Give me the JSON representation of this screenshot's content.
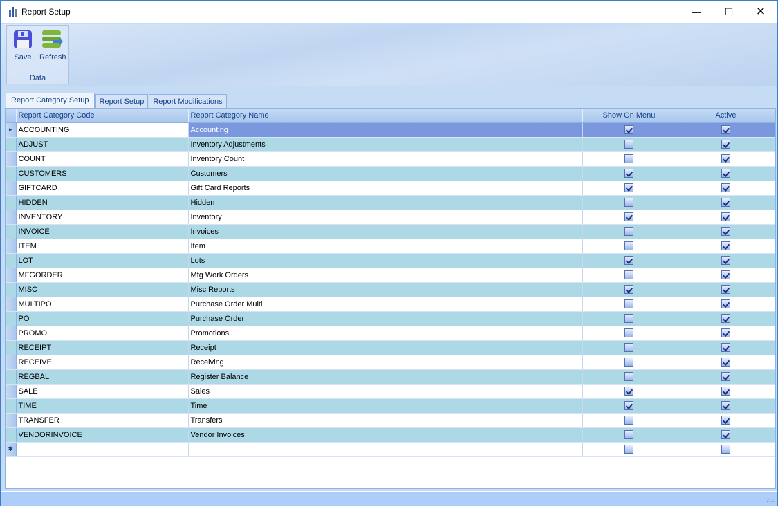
{
  "window": {
    "title": "Report Setup",
    "app_icon": "bar-chart-icon"
  },
  "ribbon": {
    "group_label": "Data",
    "save_label": "Save",
    "refresh_label": "Refresh"
  },
  "tabs": [
    {
      "label": "Report Category Setup",
      "active": true
    },
    {
      "label": "Report Setup",
      "active": false
    },
    {
      "label": "Report Modifications",
      "active": false
    }
  ],
  "grid": {
    "columns": [
      "Report Category Code",
      "Report Category Name",
      "Show On Menu",
      "Active"
    ],
    "rows": [
      {
        "code": "ACCOUNTING",
        "name": "Accounting",
        "show": true,
        "active": true
      },
      {
        "code": "ADJUST",
        "name": "Inventory Adjustments",
        "show": false,
        "active": true
      },
      {
        "code": "COUNT",
        "name": "Inventory Count",
        "show": false,
        "active": true
      },
      {
        "code": "CUSTOMERS",
        "name": "Customers",
        "show": true,
        "active": true
      },
      {
        "code": "GIFTCARD",
        "name": "Gift Card Reports",
        "show": true,
        "active": true
      },
      {
        "code": "HIDDEN",
        "name": "Hidden",
        "show": false,
        "active": true
      },
      {
        "code": "INVENTORY",
        "name": "Inventory",
        "show": true,
        "active": true
      },
      {
        "code": "INVOICE",
        "name": "Invoices",
        "show": false,
        "active": true
      },
      {
        "code": "ITEM",
        "name": "Item",
        "show": false,
        "active": true
      },
      {
        "code": "LOT",
        "name": "Lots",
        "show": true,
        "active": true
      },
      {
        "code": "MFGORDER",
        "name": "Mfg Work Orders",
        "show": false,
        "active": true
      },
      {
        "code": "MISC",
        "name": "Misc Reports",
        "show": true,
        "active": true
      },
      {
        "code": "MULTIPO",
        "name": "Purchase Order Multi",
        "show": false,
        "active": true
      },
      {
        "code": "PO",
        "name": "Purchase Order",
        "show": false,
        "active": true
      },
      {
        "code": "PROMO",
        "name": "Promotions",
        "show": false,
        "active": true
      },
      {
        "code": "RECEIPT",
        "name": "Receipt",
        "show": false,
        "active": true
      },
      {
        "code": "RECEIVE",
        "name": "Receiving",
        "show": false,
        "active": true
      },
      {
        "code": "REGBAL",
        "name": "Register Balance",
        "show": false,
        "active": true
      },
      {
        "code": "SALE",
        "name": "Sales",
        "show": true,
        "active": true
      },
      {
        "code": "TIME",
        "name": "Time",
        "show": true,
        "active": true
      },
      {
        "code": "TRANSFER",
        "name": "Transfers",
        "show": false,
        "active": true
      },
      {
        "code": "VENDORINVOICE",
        "name": "Vendor Invoices",
        "show": false,
        "active": true
      }
    ],
    "selected_row": 0
  }
}
